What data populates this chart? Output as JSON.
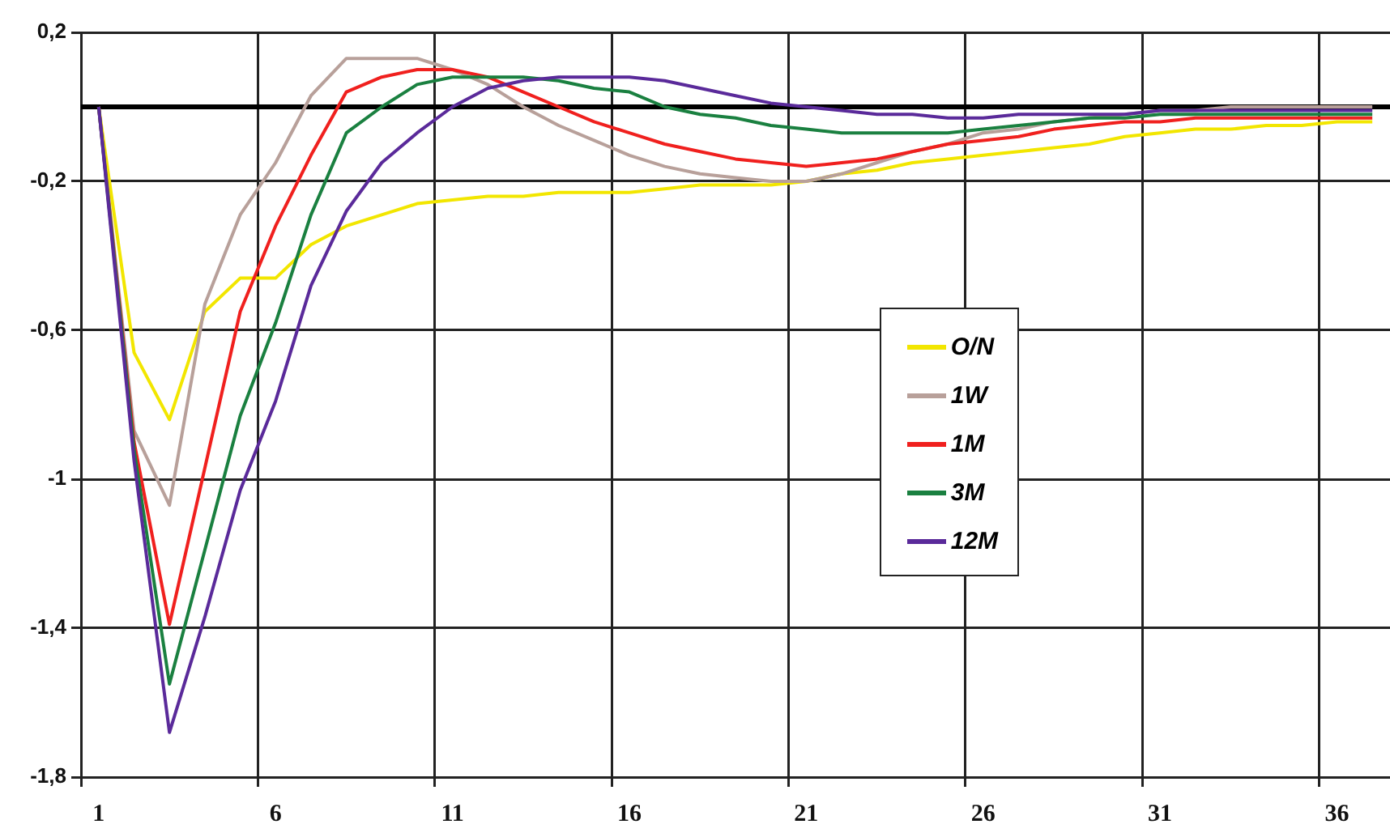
{
  "chart_data": {
    "type": "line",
    "categories": [
      "1",
      null,
      null,
      null,
      null,
      "6",
      null,
      null,
      null,
      null,
      "11",
      null,
      null,
      null,
      null,
      "16",
      null,
      null,
      null,
      null,
      "21",
      null,
      null,
      null,
      null,
      "26",
      null,
      null,
      null,
      null,
      "31",
      null,
      null,
      null,
      null,
      "36",
      null
    ],
    "series": [
      {
        "name": "O/N",
        "color": "#f2e600",
        "values": [
          0,
          -0.66,
          -0.84,
          -0.55,
          -0.46,
          -0.46,
          -0.37,
          -0.32,
          -0.29,
          -0.26,
          -0.25,
          -0.24,
          -0.24,
          -0.23,
          -0.23,
          -0.23,
          -0.22,
          -0.21,
          -0.21,
          -0.21,
          -0.2,
          -0.18,
          -0.17,
          -0.15,
          -0.14,
          -0.13,
          -0.12,
          -0.11,
          -0.1,
          -0.08,
          -0.07,
          -0.06,
          -0.06,
          -0.05,
          -0.05,
          -0.04,
          -0.04
        ]
      },
      {
        "name": "1W",
        "color": "#b8a09a",
        "values": [
          0,
          -0.87,
          -1.07,
          -0.53,
          -0.29,
          -0.15,
          0.03,
          0.13,
          0.13,
          0.13,
          0.1,
          0.06,
          0,
          -0.05,
          -0.09,
          -0.13,
          -0.16,
          -0.18,
          -0.19,
          -0.2,
          -0.2,
          -0.18,
          -0.15,
          -0.12,
          -0.1,
          -0.07,
          -0.06,
          -0.04,
          -0.03,
          -0.02,
          -0.01,
          -0.01,
          0,
          0,
          0,
          0,
          0
        ]
      },
      {
        "name": "1M",
        "color": "#f0201e",
        "values": [
          0,
          -0.9,
          -1.39,
          -0.97,
          -0.55,
          -0.32,
          -0.13,
          0.04,
          0.08,
          0.1,
          0.1,
          0.08,
          0.04,
          0,
          -0.04,
          -0.07,
          -0.1,
          -0.12,
          -0.14,
          -0.15,
          -0.16,
          -0.15,
          -0.14,
          -0.12,
          -0.1,
          -0.09,
          -0.08,
          -0.06,
          -0.05,
          -0.04,
          -0.04,
          -0.03,
          -0.03,
          -0.03,
          -0.03,
          -0.03,
          -0.03
        ]
      },
      {
        "name": "3M",
        "color": "#1a8040",
        "values": [
          0,
          -0.92,
          -1.55,
          -1.19,
          -0.83,
          -0.58,
          -0.29,
          -0.07,
          0,
          0.06,
          0.08,
          0.08,
          0.08,
          0.07,
          0.05,
          0.04,
          0,
          -0.02,
          -0.03,
          -0.05,
          -0.06,
          -0.07,
          -0.07,
          -0.07,
          -0.07,
          -0.06,
          -0.05,
          -0.04,
          -0.03,
          -0.03,
          -0.02,
          -0.02,
          -0.02,
          -0.02,
          -0.02,
          -0.02,
          -0.02
        ]
      },
      {
        "name": "12M",
        "color": "#5a2a9a",
        "values": [
          0,
          -0.95,
          -1.68,
          -1.37,
          -1.03,
          -0.79,
          -0.48,
          -0.28,
          -0.15,
          -0.07,
          0,
          0.05,
          0.07,
          0.08,
          0.08,
          0.08,
          0.07,
          0.05,
          0.03,
          0.01,
          0,
          -0.01,
          -0.02,
          -0.02,
          -0.03,
          -0.03,
          -0.02,
          -0.02,
          -0.02,
          -0.02,
          -0.01,
          -0.01,
          -0.01,
          -0.01,
          -0.01,
          -0.01,
          -0.01
        ]
      }
    ],
    "ylim": [
      -1.8,
      0.2
    ],
    "yticks": [
      {
        "value": 0.2,
        "label": "0,2"
      },
      {
        "value": -0.2,
        "label": "-0,2"
      },
      {
        "value": -0.6,
        "label": "-0,6"
      },
      {
        "value": -1,
        "label": "-1"
      },
      {
        "value": -1.4,
        "label": "-1,4"
      },
      {
        "value": -1.8,
        "label": "-1,8"
      }
    ],
    "ref_lines": [
      {
        "axis": "y",
        "value": 0,
        "color": "#000000"
      }
    ],
    "grid": true,
    "legend": "center",
    "marker": "none",
    "line_style": "solid"
  }
}
